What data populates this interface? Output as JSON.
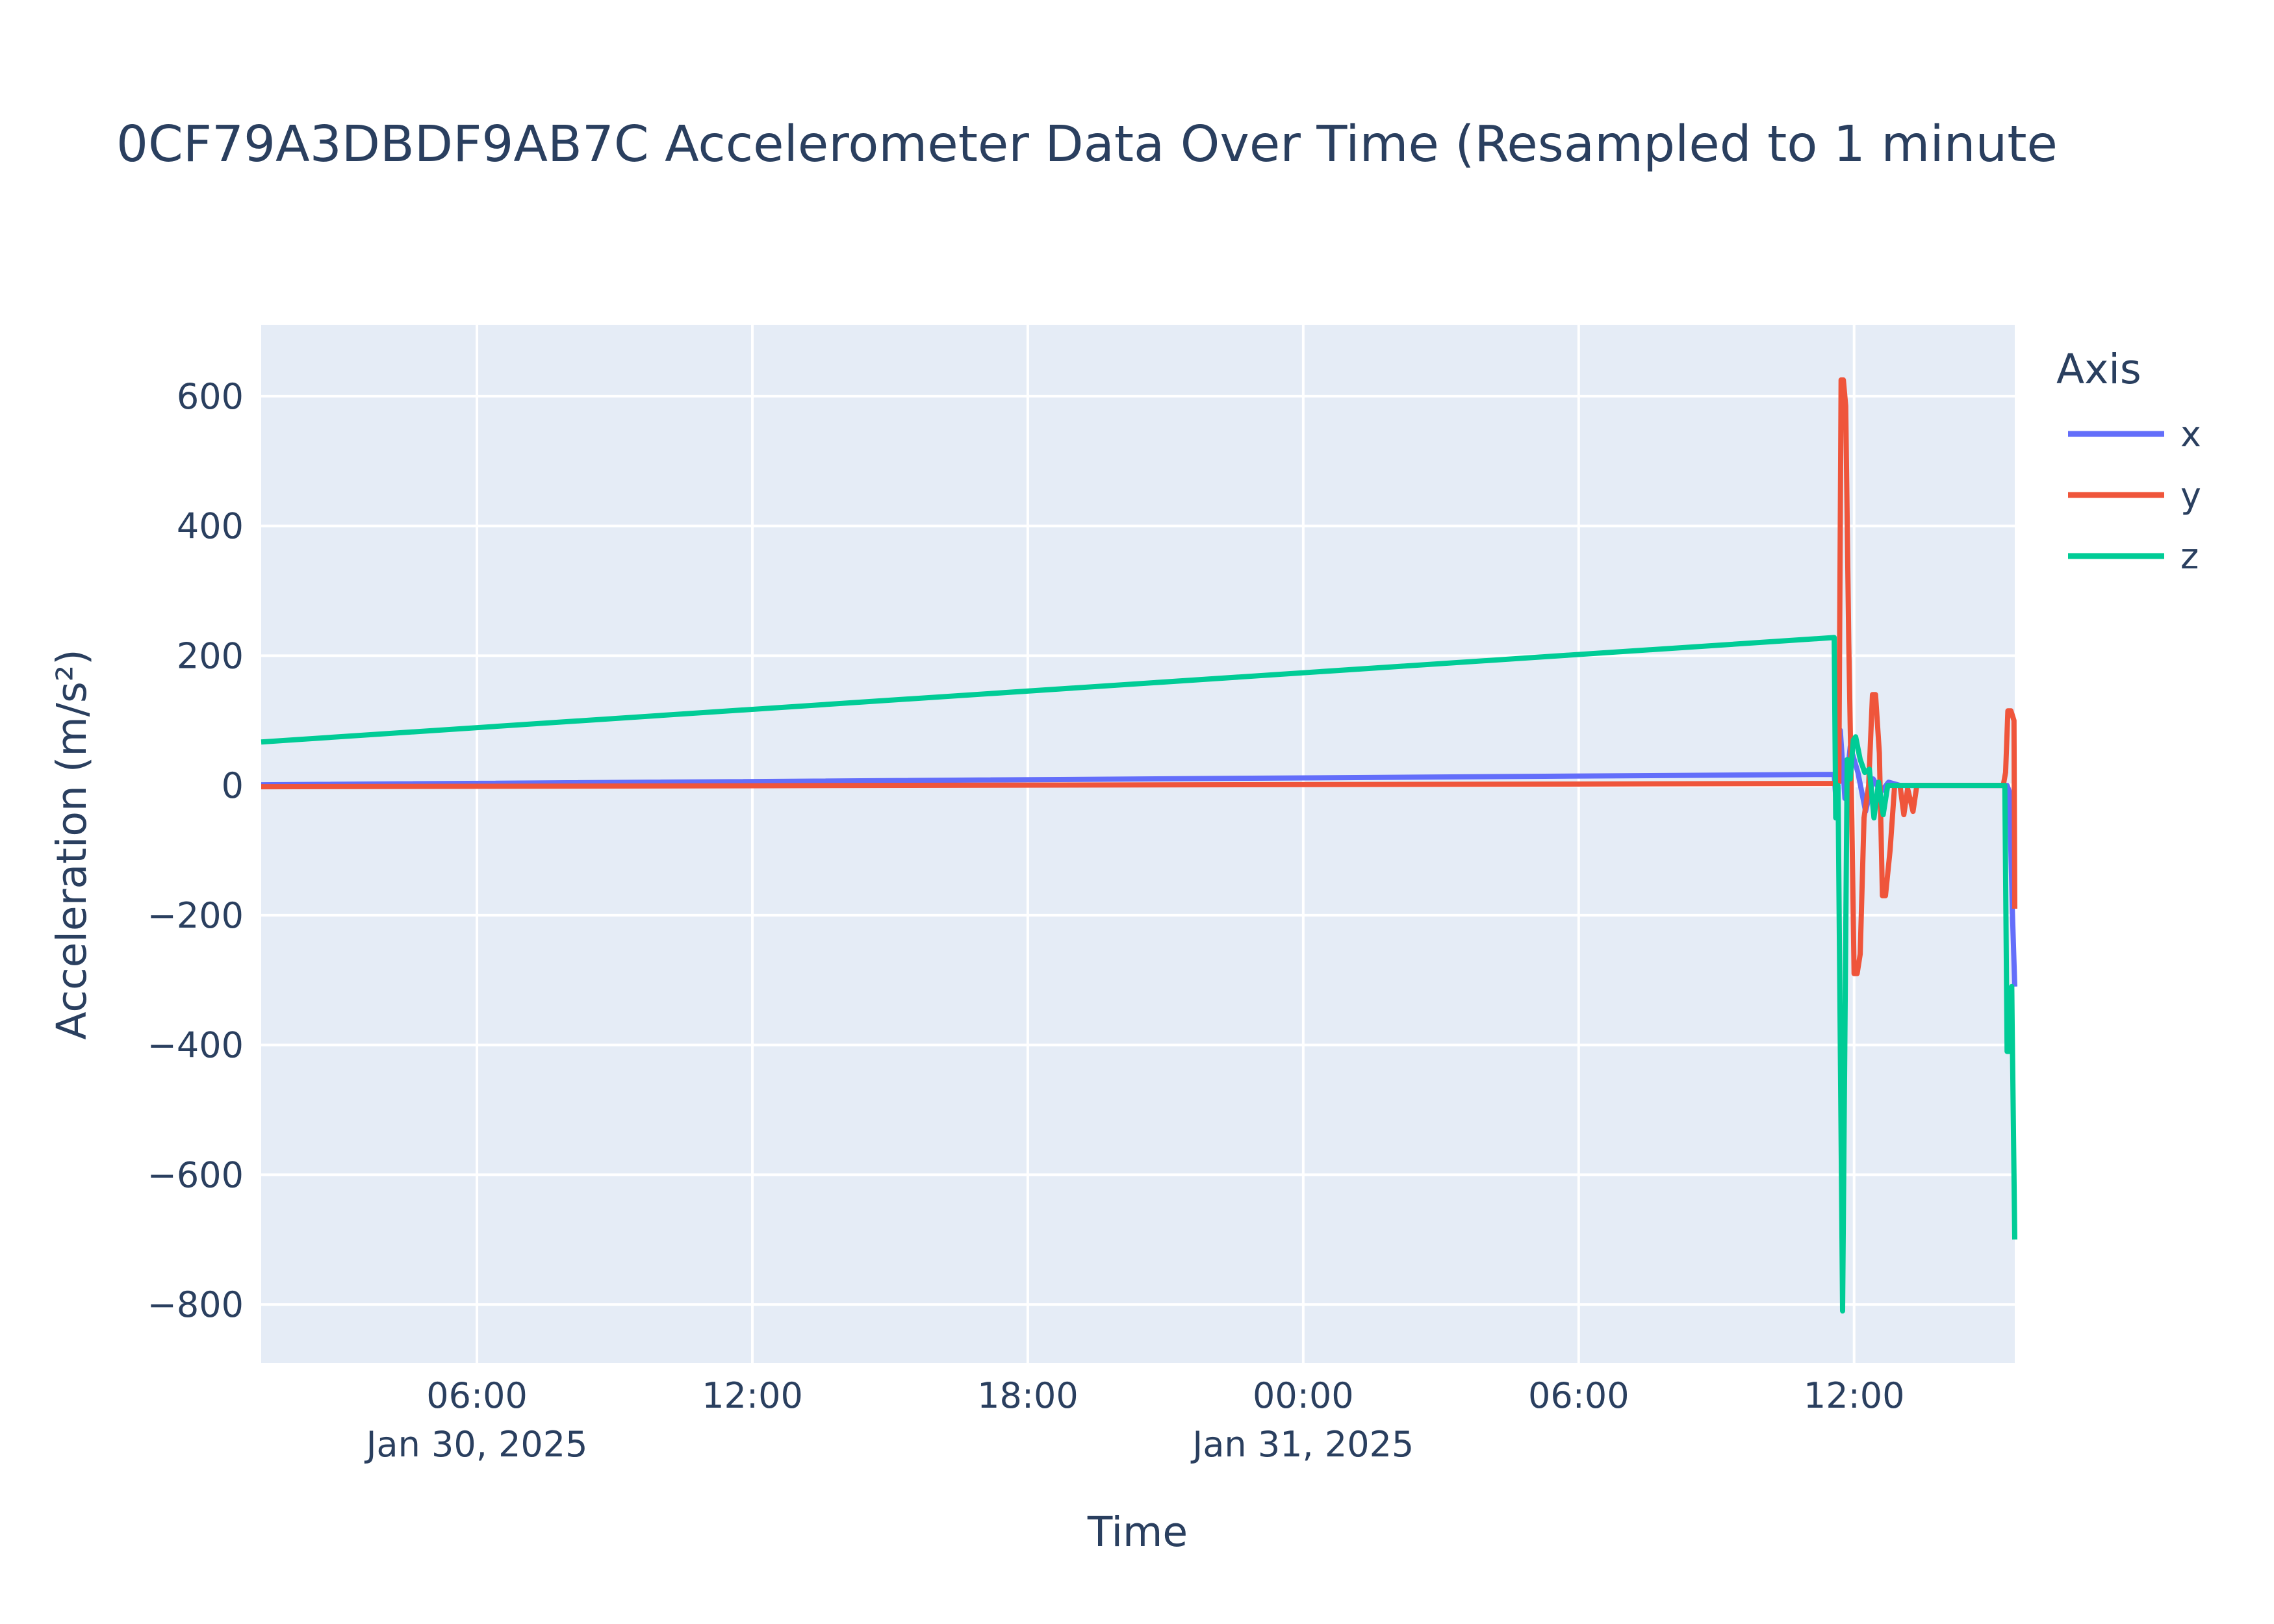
{
  "chart_data": {
    "type": "line",
    "title": "0CF79A3DBDF9AB7C Accelerometer Data Over Time (Resampled to 1 minute",
    "xlabel": "Time",
    "ylabel": "Acceleration (m/s²)",
    "xlim": [
      "2025-01-30 01:18",
      "2025-01-31 15:30"
    ],
    "ylim": [
      -890,
      710
    ],
    "x_ticks": [
      {
        "t": "2025-01-30 06:00",
        "label": "06:00",
        "sublabel": "Jan 30, 2025"
      },
      {
        "t": "2025-01-30 12:00",
        "label": "12:00",
        "sublabel": ""
      },
      {
        "t": "2025-01-30 18:00",
        "label": "18:00",
        "sublabel": ""
      },
      {
        "t": "2025-01-31 00:00",
        "label": "00:00",
        "sublabel": "Jan 31, 2025"
      },
      {
        "t": "2025-01-31 06:00",
        "label": "06:00",
        "sublabel": ""
      },
      {
        "t": "2025-01-31 12:00",
        "label": "12:00",
        "sublabel": ""
      }
    ],
    "y_ticks": [
      {
        "v": 600,
        "label": "600"
      },
      {
        "v": 400,
        "label": "400"
      },
      {
        "v": 200,
        "label": "200"
      },
      {
        "v": 0,
        "label": "0"
      },
      {
        "v": -200,
        "label": "−200"
      },
      {
        "v": -400,
        "label": "−400"
      },
      {
        "v": -600,
        "label": "−600"
      },
      {
        "v": -800,
        "label": "−800"
      }
    ],
    "legend": {
      "title": "Axis",
      "position": "right"
    },
    "grid": true,
    "colors": {
      "plot_bg": "#e5ecf6",
      "grid": "#ffffff",
      "text": "#2a3f5f"
    },
    "series": [
      {
        "name": "x",
        "color": "#636efa",
        "points": [
          [
            "2025-01-30 01:18",
            1
          ],
          [
            "2025-01-31 11:34",
            17
          ],
          [
            "2025-01-31 11:37",
            -35
          ],
          [
            "2025-01-31 11:42",
            85
          ],
          [
            "2025-01-31 11:48",
            -20
          ],
          [
            "2025-01-31 11:55",
            60
          ],
          [
            "2025-01-31 12:05",
            20
          ],
          [
            "2025-01-31 12:15",
            -40
          ],
          [
            "2025-01-31 12:25",
            10
          ],
          [
            "2025-01-31 12:35",
            -10
          ],
          [
            "2025-01-31 12:45",
            5
          ],
          [
            "2025-01-31 13:00",
            0
          ],
          [
            "2025-01-31 15:20",
            0
          ],
          [
            "2025-01-31 15:23",
            -10
          ],
          [
            "2025-01-31 15:27",
            -200
          ],
          [
            "2025-01-31 15:30",
            -310
          ]
        ]
      },
      {
        "name": "y",
        "color": "#ef553b",
        "points": [
          [
            "2025-01-30 01:18",
            -2
          ],
          [
            "2025-01-31 11:34",
            3
          ],
          [
            "2025-01-31 11:40",
            5
          ],
          [
            "2025-01-31 11:43",
            625
          ],
          [
            "2025-01-31 11:46",
            625
          ],
          [
            "2025-01-31 11:49",
            585
          ],
          [
            "2025-01-31 11:53",
            220
          ],
          [
            "2025-01-31 11:57",
            -50
          ],
          [
            "2025-01-31 12:00",
            -290
          ],
          [
            "2025-01-31 12:04",
            -290
          ],
          [
            "2025-01-31 12:08",
            -260
          ],
          [
            "2025-01-31 12:13",
            -50
          ],
          [
            "2025-01-31 12:19",
            0
          ],
          [
            "2025-01-31 12:24",
            140
          ],
          [
            "2025-01-31 12:28",
            140
          ],
          [
            "2025-01-31 12:33",
            50
          ],
          [
            "2025-01-31 12:37",
            -170
          ],
          [
            "2025-01-31 12:41",
            -170
          ],
          [
            "2025-01-31 12:47",
            -100
          ],
          [
            "2025-01-31 12:53",
            0
          ],
          [
            "2025-01-31 13:00",
            0
          ],
          [
            "2025-01-31 13:05",
            -45
          ],
          [
            "2025-01-31 13:10",
            -5
          ],
          [
            "2025-01-31 13:17",
            -40
          ],
          [
            "2025-01-31 13:22",
            0
          ],
          [
            "2025-01-31 15:15",
            0
          ],
          [
            "2025-01-31 15:18",
            20
          ],
          [
            "2025-01-31 15:21",
            115
          ],
          [
            "2025-01-31 15:25",
            115
          ],
          [
            "2025-01-31 15:29",
            100
          ],
          [
            "2025-01-31 15:30",
            -190
          ]
        ]
      },
      {
        "name": "z",
        "color": "#00cc96",
        "points": [
          [
            "2025-01-30 01:18",
            67
          ],
          [
            "2025-01-31 11:34",
            228
          ],
          [
            "2025-01-31 11:36",
            -50
          ],
          [
            "2025-01-31 11:39",
            0
          ],
          [
            "2025-01-31 11:45",
            -810
          ],
          [
            "2025-01-31 11:51",
            40
          ],
          [
            "2025-01-31 11:55",
            10
          ],
          [
            "2025-01-31 11:59",
            70
          ],
          [
            "2025-01-31 12:02",
            75
          ],
          [
            "2025-01-31 12:08",
            40
          ],
          [
            "2025-01-31 12:14",
            20
          ],
          [
            "2025-01-31 12:20",
            25
          ],
          [
            "2025-01-31 12:26",
            -50
          ],
          [
            "2025-01-31 12:32",
            5
          ],
          [
            "2025-01-31 12:38",
            -45
          ],
          [
            "2025-01-31 12:44",
            0
          ],
          [
            "2025-01-31 13:00",
            0
          ],
          [
            "2025-01-31 15:17",
            0
          ],
          [
            "2025-01-31 15:20",
            -410
          ],
          [
            "2025-01-31 15:23",
            -410
          ],
          [
            "2025-01-31 15:26",
            -310
          ],
          [
            "2025-01-31 15:30",
            -700
          ]
        ]
      }
    ]
  }
}
